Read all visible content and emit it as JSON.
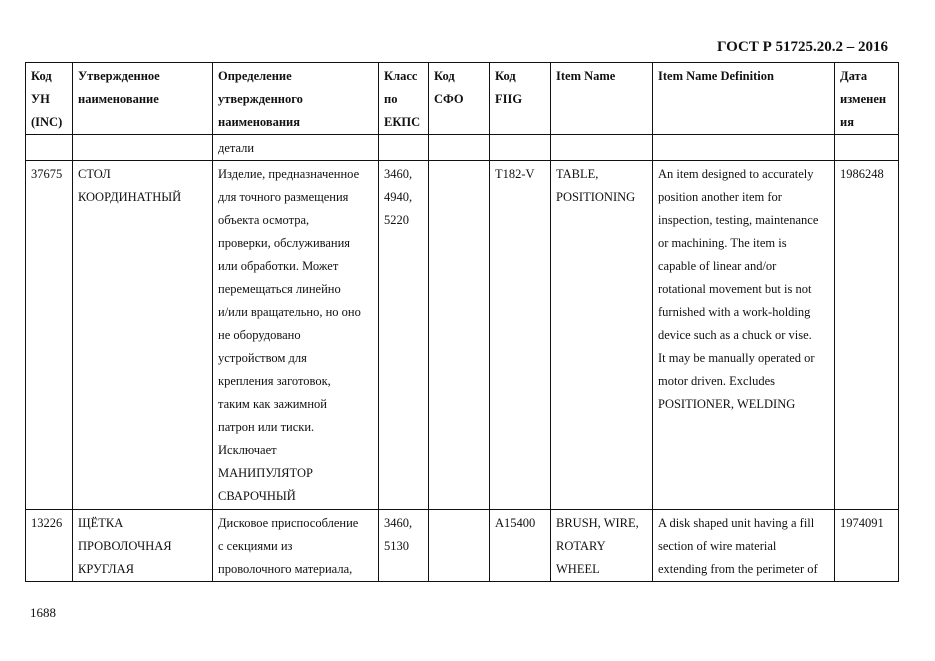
{
  "header": {
    "standard": "ГОСТ Р 51725.20.2 – 2016"
  },
  "table": {
    "columns": [
      "Код\nУН\n(INC)",
      "Утвержденное\nнаименование",
      "Определение\nутвержденного\nнаименования",
      "Класс\nпо\nЕКПС",
      "Код\nСФО",
      "Код\nFIIG",
      "Item Name",
      "Item Name Definition",
      "Дата\nизменен\nия"
    ],
    "rows": [
      [
        "",
        "",
        "детали",
        "",
        "",
        "",
        "",
        "",
        ""
      ],
      [
        "37675",
        "СТОЛ\nКООРДИНАТНЫЙ",
        "Изделие, предназначенное\nдля точного размещения\nобъекта осмотра,\nпроверки, обслуживания\nили обработки. Может\nперемещаться линейно\nи/или вращательно, но оно\nне оборудовано\nустройством для\nкрепления заготовок,\nтаким как зажимной\nпатрон или тиски.\nИсключает\nМАНИПУЛЯТОР\nСВАРОЧНЫЙ",
        "3460,\n4940,\n5220",
        "",
        "T182-V",
        "TABLE,\nPOSITIONING",
        "An item designed to accurately\nposition another item for\ninspection, testing, maintenance\nor machining. The item is\ncapable of linear and/or\nrotational movement but is not\nfurnished with a work-holding\ndevice such as a chuck or vise.\nIt may be manually operated or\nmotor driven. Excludes\nPOSITIONER, WELDING",
        "1986248"
      ],
      [
        "13226",
        "ЩЁТКА\nПРОВОЛОЧНАЯ\nКРУГЛАЯ",
        "Дисковое приспособление\nс секциями из\nпроволочного материала,",
        "3460,\n5130",
        "",
        "A15400",
        "BRUSH, WIRE,\nROTARY\nWHEEL",
        "A disk shaped unit having a fill\nsection of wire material\nextending from the perimeter of",
        "1974091"
      ]
    ]
  },
  "footer": {
    "page_number": "1688"
  }
}
